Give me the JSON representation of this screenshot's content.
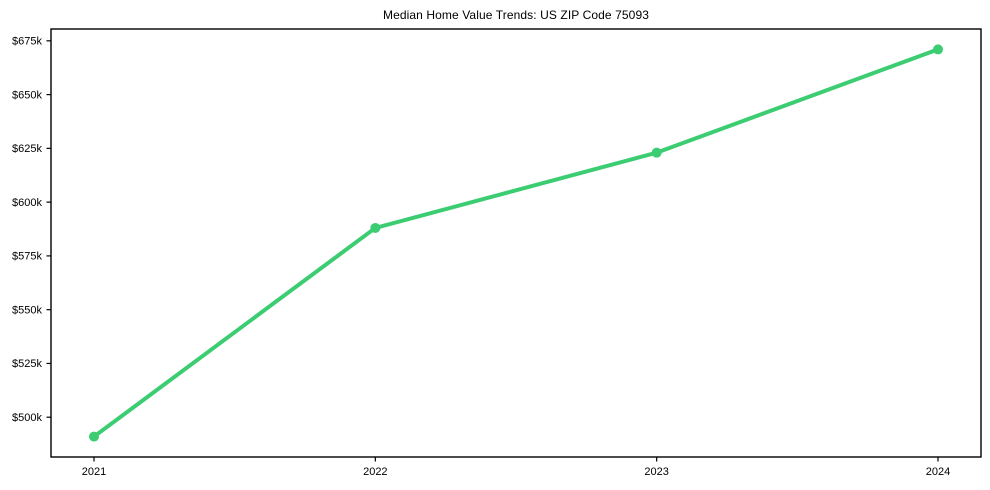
{
  "page": {
    "background": "#ffffff"
  },
  "chart_data": {
    "type": "line",
    "title": "Median Home Value Trends: US ZIP Code 75093",
    "categories": [
      "2021",
      "2022",
      "2023",
      "2024"
    ],
    "series": [
      {
        "name": "Median Home Value",
        "values": [
          491000,
          588000,
          623000,
          671000
        ]
      }
    ],
    "y_ticks": [
      {
        "value": 500000,
        "label": "$500k"
      },
      {
        "value": 525000,
        "label": "$525k"
      },
      {
        "value": 550000,
        "label": "$550k"
      },
      {
        "value": 575000,
        "label": "$575k"
      },
      {
        "value": 600000,
        "label": "$600k"
      },
      {
        "value": 625000,
        "label": "$625k"
      },
      {
        "value": 650000,
        "label": "$650k"
      },
      {
        "value": 675000,
        "label": "$675k"
      }
    ],
    "ylim": [
      481500,
      680500
    ],
    "xlabel": "",
    "ylabel": "",
    "grid": false,
    "legend": "none",
    "marker": "circle",
    "line_color": "#3ccd73",
    "axis_color": "#000000",
    "text_color": "#000000"
  }
}
